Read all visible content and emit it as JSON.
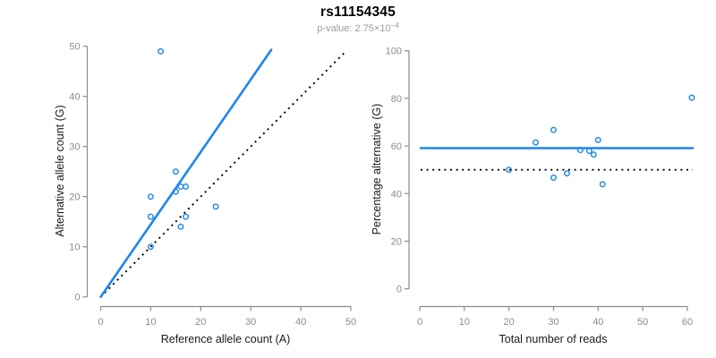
{
  "header": {
    "title": "rs11154345",
    "pvalue_text": "p-value: 2.75×10",
    "pvalue_exponent": "−4"
  },
  "colors": {
    "accent_blue": "#1e86ee",
    "reference_black": "#000000",
    "axis_gray": "#8c8c8c",
    "tick_label_gray": "#8c8c8c",
    "axis_title_color": "#1a1a1a",
    "title_color": "#000000",
    "subtitle_gray": "#9b9b9b"
  },
  "chart_data": [
    {
      "type": "scatter",
      "xlabel": "Reference allele count (A)",
      "ylabel": "Alternative allele count (G)",
      "xlim": [
        0,
        50
      ],
      "ylim": [
        0,
        50
      ],
      "xticks": [
        0,
        10,
        20,
        30,
        40,
        50
      ],
      "yticks": [
        0,
        10,
        20,
        30,
        40,
        50
      ],
      "grid": false,
      "points": [
        [
          12,
          49
        ],
        [
          15,
          25
        ],
        [
          16,
          22
        ],
        [
          17,
          22
        ],
        [
          15,
          21
        ],
        [
          10,
          20
        ],
        [
          23,
          18
        ],
        [
          10,
          16
        ],
        [
          17,
          16
        ],
        [
          16,
          14
        ],
        [
          10,
          10
        ]
      ],
      "fit_line": {
        "style": "solid",
        "color": "#1e86ee",
        "from": [
          0,
          0
        ],
        "to": [
          34.1,
          49.3
        ]
      },
      "reference_line": {
        "style": "dotted",
        "color": "#000000",
        "from": [
          0.8,
          0.8
        ],
        "to": [
          49,
          49
        ]
      }
    },
    {
      "type": "scatter",
      "xlabel": "Total number of reads",
      "ylabel": "Percentage alternative (G)",
      "xlim": [
        0,
        61.5
      ],
      "ylim": [
        0,
        100
      ],
      "xticks": [
        0,
        10,
        20,
        30,
        40,
        50,
        60
      ],
      "yticks": [
        0,
        20,
        40,
        60,
        80,
        100
      ],
      "grid": false,
      "points": [
        [
          61,
          80.3
        ],
        [
          40,
          62.5
        ],
        [
          39,
          56.4
        ],
        [
          38,
          57.9
        ],
        [
          36,
          58.3
        ],
        [
          30,
          66.7
        ],
        [
          41,
          43.9
        ],
        [
          26,
          61.5
        ],
        [
          33,
          48.5
        ],
        [
          30,
          46.7
        ],
        [
          20,
          50
        ]
      ],
      "fit_line": {
        "style": "solid",
        "color": "#1e86ee",
        "from": [
          0.2,
          59.1
        ],
        "to": [
          61.2,
          59.1
        ]
      },
      "reference_line": {
        "style": "dotted",
        "color": "#000000",
        "from": [
          0.2,
          50
        ],
        "to": [
          61.2,
          50
        ]
      }
    }
  ]
}
